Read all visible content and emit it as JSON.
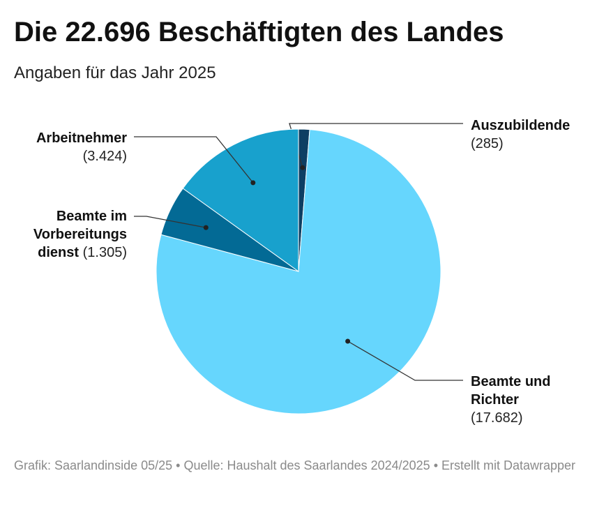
{
  "header": {
    "title": "Die 22.696 Beschäftigten des Landes",
    "subtitle": "Angaben für das Jahr 2025"
  },
  "chart_data": {
    "type": "pie",
    "title": "Die 22.696 Beschäftigten des Landes",
    "subtitle": "Angaben für das Jahr 2025",
    "slices": [
      {
        "label": "Auszubildende",
        "value": 285,
        "value_text": "(285)",
        "color": "#0d3f63"
      },
      {
        "label": "Beamte und Richter",
        "value": 17682,
        "value_text": "(17.682)",
        "color": "#66d6fd"
      },
      {
        "label": "Beamte im Vorbereitungs dienst",
        "label_lines": [
          "Beamte im",
          "Vorbereitungs",
          "dienst"
        ],
        "value": 1305,
        "value_text": "(1.305)",
        "color": "#036a95"
      },
      {
        "label": "Arbeitnehmer",
        "value": 3424,
        "value_text": "(3.424)",
        "color": "#18a1cd"
      }
    ],
    "total": 22696
  },
  "footer": {
    "source_text": "Grafik: Saarlandinside 05/25 • Quelle: Haushalt des Saarlandes 2024/2025 • Erstellt mit Datawrapper"
  }
}
